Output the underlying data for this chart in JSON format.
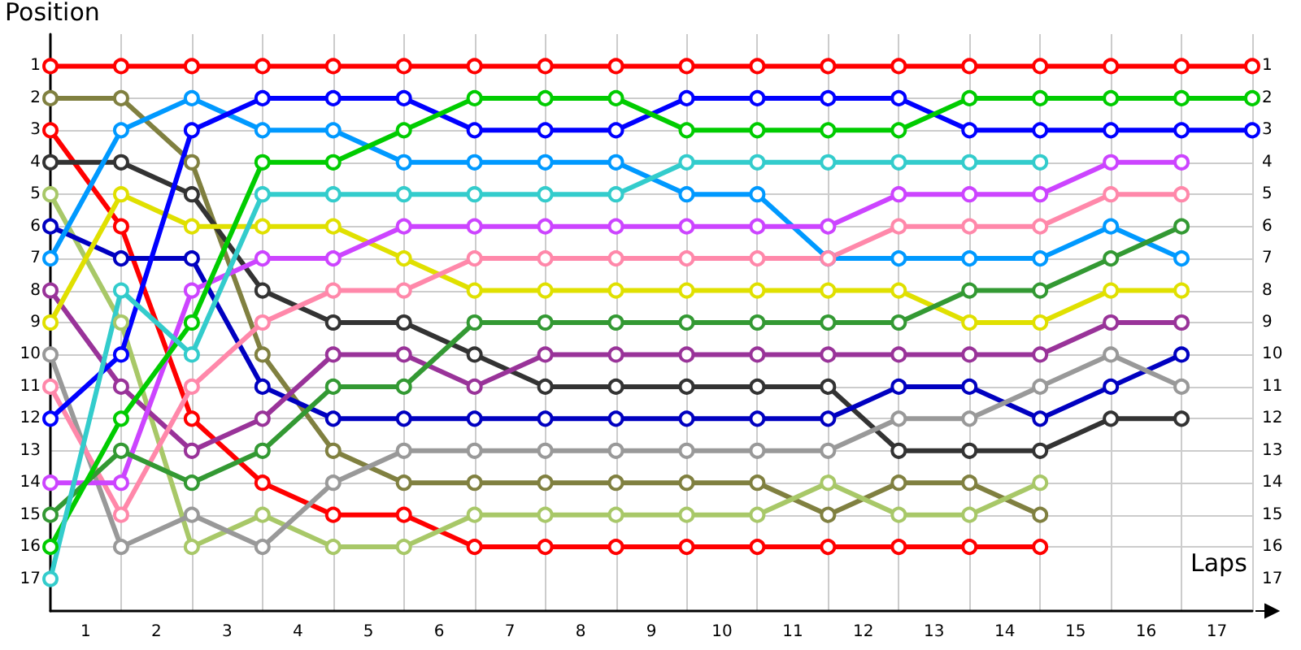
{
  "chart_data": {
    "type": "line",
    "xlabel": "Laps",
    "ylabel": "Position",
    "x": [
      0,
      1,
      2,
      3,
      4,
      5,
      6,
      7,
      8,
      9,
      10,
      11,
      12,
      13,
      14,
      15,
      16,
      17
    ],
    "xlim": [
      0,
      17
    ],
    "xticks": [
      {
        "value": 0.5,
        "label": "1"
      },
      {
        "value": 1.5,
        "label": "2"
      },
      {
        "value": 2.5,
        "label": "3"
      },
      {
        "value": 3.5,
        "label": "4"
      },
      {
        "value": 4.5,
        "label": "5"
      },
      {
        "value": 5.5,
        "label": "6"
      },
      {
        "value": 6.5,
        "label": "7"
      },
      {
        "value": 7.5,
        "label": "8"
      },
      {
        "value": 8.5,
        "label": "9"
      },
      {
        "value": 9.5,
        "label": "10"
      },
      {
        "value": 10.5,
        "label": "11"
      },
      {
        "value": 11.5,
        "label": "12"
      },
      {
        "value": 12.5,
        "label": "13"
      },
      {
        "value": 13.5,
        "label": "14"
      },
      {
        "value": 14.5,
        "label": "15"
      },
      {
        "value": 15.5,
        "label": "16"
      },
      {
        "value": 16.5,
        "label": "17"
      }
    ],
    "ylim": [
      18,
      0
    ],
    "yticks": [
      1,
      2,
      3,
      4,
      5,
      6,
      7,
      8,
      9,
      10,
      11,
      12,
      13,
      14,
      15,
      16,
      17
    ],
    "y2lim": [
      18,
      0
    ],
    "y2ticks": [
      1,
      2,
      3,
      4,
      5,
      6,
      7,
      8,
      9,
      10,
      11,
      12,
      13,
      14,
      15,
      16,
      17
    ],
    "grid": true,
    "marker": "circle",
    "line_style": "solid",
    "series": [
      {
        "color": "#ff0000",
        "values": [
          1,
          1,
          1,
          1,
          1,
          1,
          1,
          1,
          1,
          1,
          1,
          1,
          1,
          1,
          1,
          1,
          1,
          1
        ]
      },
      {
        "color": "#808040",
        "values": [
          2,
          2,
          4,
          10,
          13,
          14,
          14,
          14,
          14,
          14,
          14,
          15,
          14,
          14,
          15,
          null,
          null,
          null
        ]
      },
      {
        "color": "#ff0000",
        "values": [
          3,
          6,
          12,
          14,
          15,
          15,
          16,
          16,
          16,
          16,
          16,
          16,
          16,
          16,
          16,
          null,
          null,
          null
        ]
      },
      {
        "color": "#333333",
        "values": [
          4,
          4,
          5,
          8,
          9,
          9,
          10,
          11,
          11,
          11,
          11,
          11,
          13,
          13,
          13,
          12,
          12,
          null
        ]
      },
      {
        "color": "#a8c868",
        "values": [
          5,
          9,
          16,
          15,
          16,
          16,
          15,
          15,
          15,
          15,
          15,
          14,
          15,
          15,
          14,
          null,
          null,
          null
        ]
      },
      {
        "color": "#0000c0",
        "values": [
          6,
          7,
          7,
          11,
          12,
          12,
          12,
          12,
          12,
          12,
          12,
          12,
          11,
          11,
          12,
          11,
          10,
          null
        ]
      },
      {
        "color": "#0099ff",
        "values": [
          7,
          3,
          2,
          3,
          3,
          4,
          4,
          4,
          4,
          5,
          5,
          7,
          7,
          7,
          7,
          6,
          7,
          null
        ]
      },
      {
        "color": "#993399",
        "values": [
          8,
          11,
          13,
          12,
          10,
          10,
          11,
          10,
          10,
          10,
          10,
          10,
          10,
          10,
          10,
          9,
          9,
          null
        ]
      },
      {
        "color": "#e0e000",
        "values": [
          9,
          5,
          6,
          6,
          6,
          7,
          8,
          8,
          8,
          8,
          8,
          8,
          8,
          9,
          9,
          8,
          8,
          null
        ]
      },
      {
        "color": "#999999",
        "values": [
          10,
          16,
          15,
          16,
          14,
          13,
          13,
          13,
          13,
          13,
          13,
          13,
          12,
          12,
          11,
          10,
          11,
          null
        ]
      },
      {
        "color": "#ff88aa",
        "values": [
          11,
          15,
          11,
          9,
          8,
          8,
          7,
          7,
          7,
          7,
          7,
          7,
          6,
          6,
          6,
          5,
          5,
          null
        ]
      },
      {
        "color": "#0000ff",
        "values": [
          12,
          10,
          3,
          2,
          2,
          2,
          3,
          3,
          3,
          2,
          2,
          2,
          2,
          3,
          3,
          3,
          3,
          3
        ]
      },
      {
        "color": "#cc44ff",
        "values": [
          14,
          14,
          8,
          7,
          7,
          6,
          6,
          6,
          6,
          6,
          6,
          6,
          5,
          5,
          5,
          4,
          4,
          null
        ]
      },
      {
        "color": "#339933",
        "values": [
          15,
          13,
          14,
          13,
          11,
          11,
          9,
          9,
          9,
          9,
          9,
          9,
          9,
          8,
          8,
          7,
          6,
          null
        ]
      },
      {
        "color": "#00cc00",
        "values": [
          16,
          12,
          9,
          4,
          4,
          3,
          2,
          2,
          2,
          3,
          3,
          3,
          3,
          2,
          2,
          2,
          2,
          2
        ]
      },
      {
        "color": "#33cccc",
        "values": [
          17,
          8,
          10,
          5,
          5,
          5,
          5,
          5,
          5,
          4,
          4,
          4,
          4,
          4,
          4,
          null,
          null,
          null
        ]
      }
    ]
  }
}
